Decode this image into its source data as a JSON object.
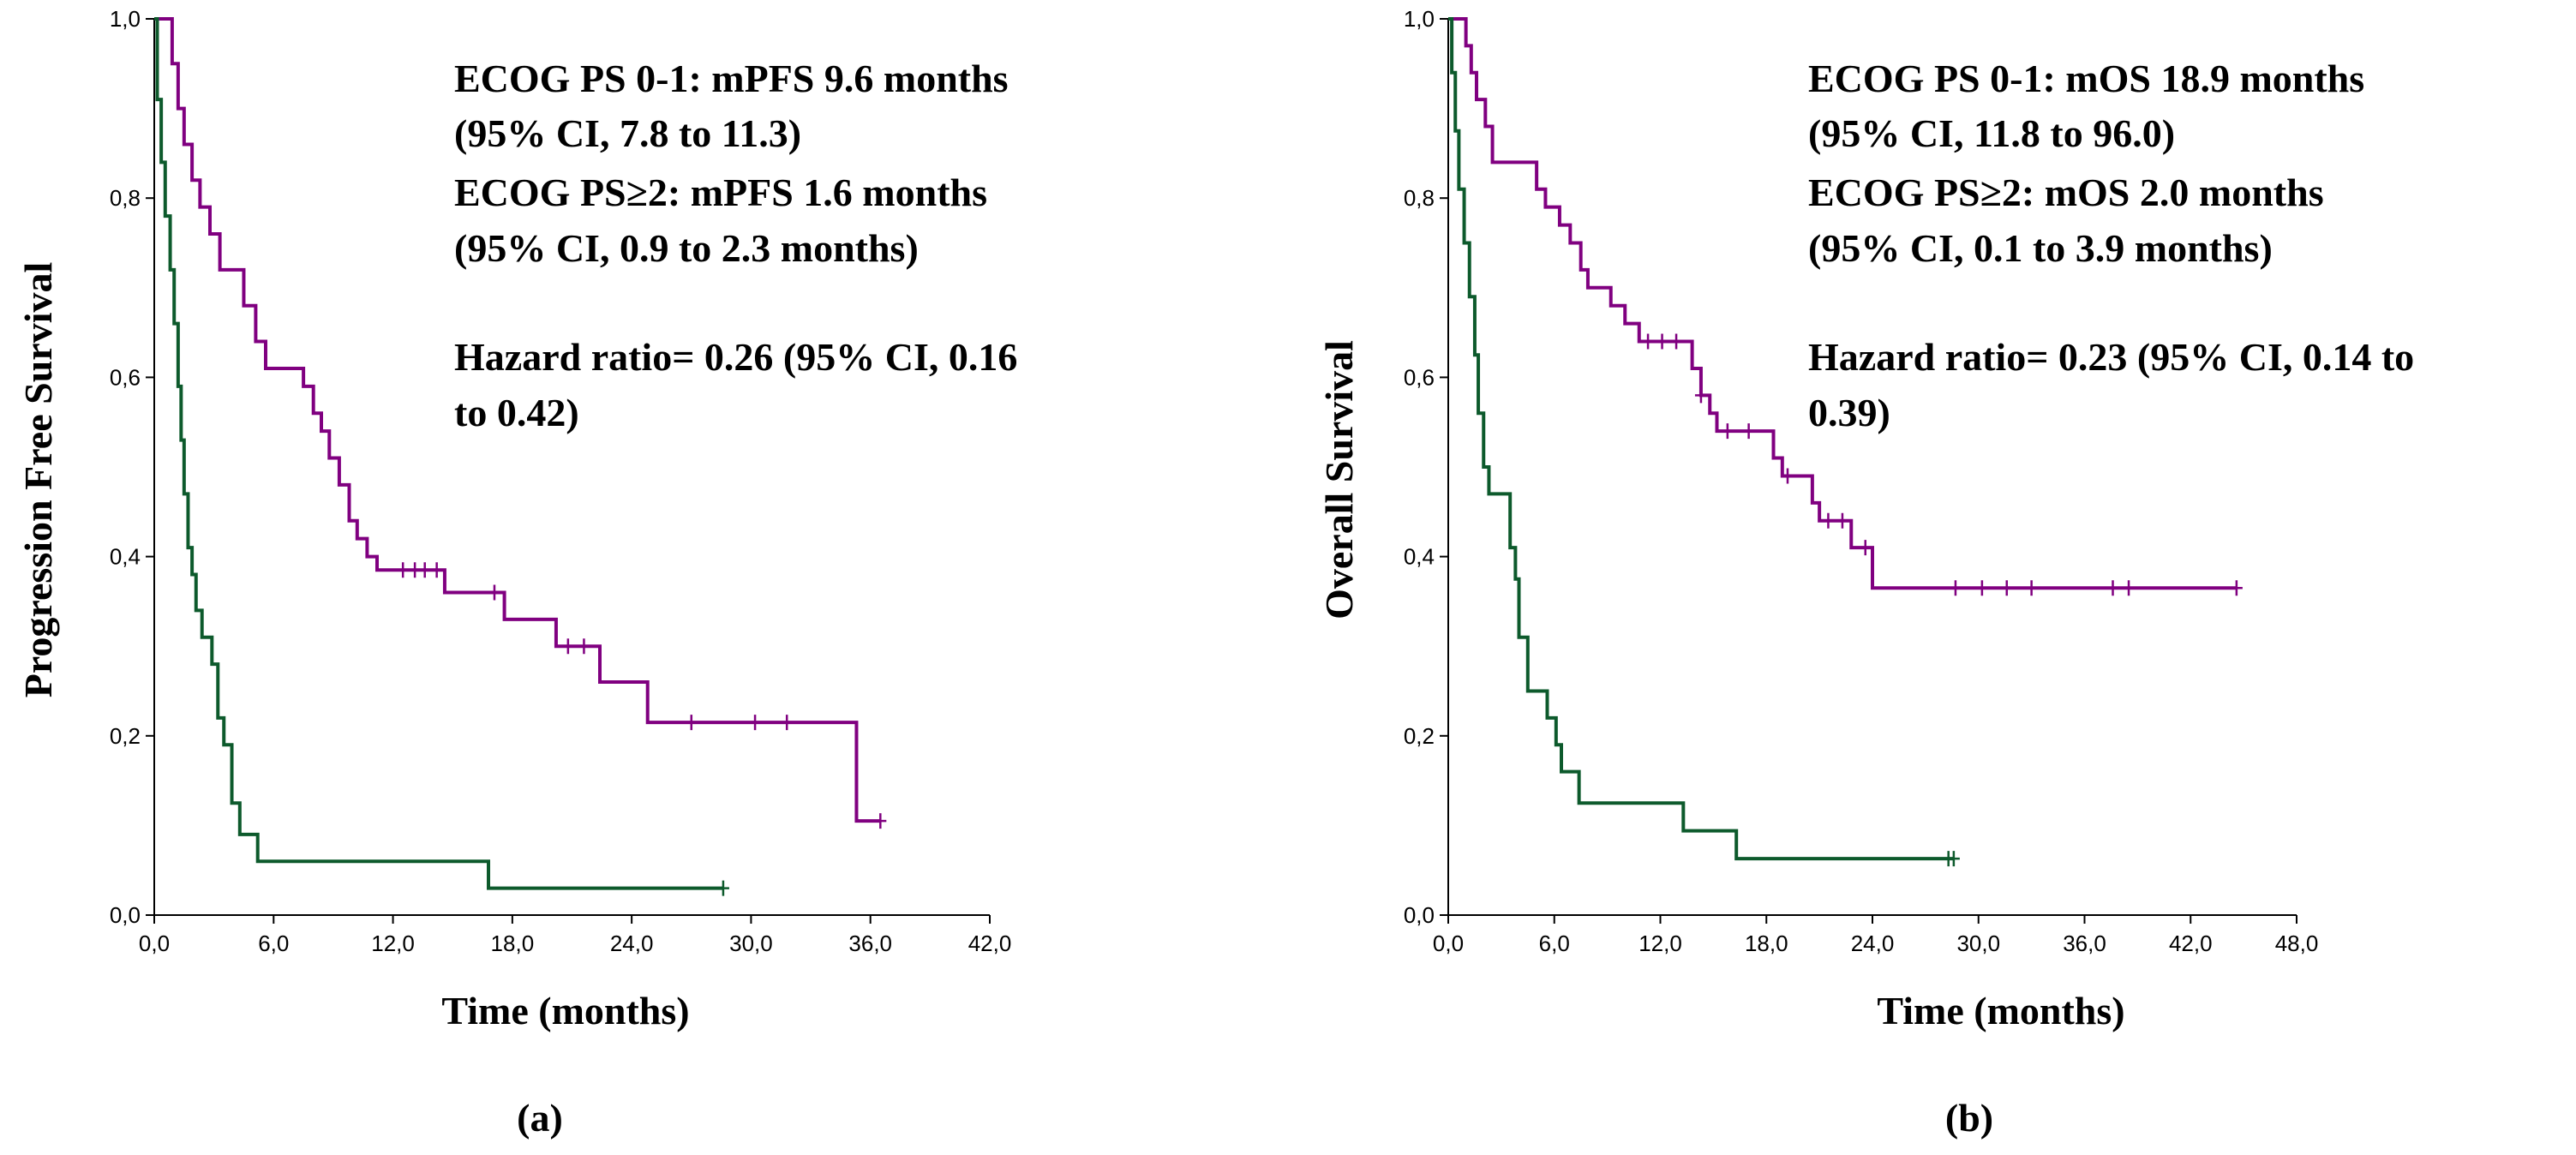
{
  "colors": {
    "ps01": "#800080",
    "ps2": "#0d5a2c",
    "axis": "#000000"
  },
  "chart_data": [
    {
      "type": "line",
      "subtype": "kaplan-meier",
      "panel_label": "(a)",
      "xlabel": "Time (months)",
      "ylabel": "Progression Free Survival",
      "x_ticks": [
        "0,0",
        "6,0",
        "12,0",
        "18,0",
        "24,0",
        "30,0",
        "36,0",
        "42,0"
      ],
      "x_tick_values": [
        0,
        6,
        12,
        18,
        24,
        30,
        36,
        42
      ],
      "y_ticks": [
        "0,0",
        "0,2",
        "0,4",
        "0,6",
        "0,8",
        "1,0"
      ],
      "y_tick_values": [
        0,
        0.2,
        0.4,
        0.6,
        0.8,
        1.0
      ],
      "xlim": [
        0,
        42
      ],
      "ylim": [
        0,
        1
      ],
      "annotations": [
        "ECOG PS 0-1: mPFS 9.6 months",
        "(95% CI, 7.8 to 11.3)",
        "ECOG PS≥2: mPFS 1.6 months",
        "(95% CI, 0.9 to 2.3 months)",
        "",
        "Hazard ratio= 0.26 (95% CI, 0.16",
        "to 0.42)"
      ],
      "series": [
        {
          "name": "ECOG PS 0-1",
          "color_key": "ps01",
          "steps": [
            [
              0,
              1.0
            ],
            [
              0.6,
              1.0
            ],
            [
              0.9,
              0.95
            ],
            [
              1.2,
              0.9
            ],
            [
              1.5,
              0.86
            ],
            [
              1.9,
              0.82
            ],
            [
              2.3,
              0.79
            ],
            [
              2.8,
              0.76
            ],
            [
              3.3,
              0.72
            ],
            [
              4.5,
              0.68
            ],
            [
              5.1,
              0.64
            ],
            [
              5.6,
              0.61
            ],
            [
              7.5,
              0.59
            ],
            [
              8.0,
              0.56
            ],
            [
              8.4,
              0.54
            ],
            [
              8.8,
              0.51
            ],
            [
              9.3,
              0.48
            ],
            [
              9.8,
              0.44
            ],
            [
              10.2,
              0.42
            ],
            [
              10.7,
              0.4
            ],
            [
              11.2,
              0.385
            ],
            [
              14.6,
              0.36
            ],
            [
              17.6,
              0.33
            ],
            [
              20.2,
              0.3
            ],
            [
              22.4,
              0.26
            ],
            [
              24.8,
              0.215
            ],
            [
              35.3,
              0.105
            ],
            [
              36.5,
              0.105
            ]
          ],
          "censored": [
            [
              12.5,
              0.385
            ],
            [
              13.1,
              0.385
            ],
            [
              13.6,
              0.385
            ],
            [
              14.2,
              0.385
            ],
            [
              17.1,
              0.36
            ],
            [
              20.8,
              0.3
            ],
            [
              21.6,
              0.3
            ],
            [
              27.0,
              0.215
            ],
            [
              30.2,
              0.215
            ],
            [
              31.8,
              0.215
            ],
            [
              36.5,
              0.105
            ]
          ]
        },
        {
          "name": "ECOG PS≥2",
          "color_key": "ps2",
          "steps": [
            [
              0,
              1.0
            ],
            [
              0.15,
              0.91
            ],
            [
              0.35,
              0.84
            ],
            [
              0.55,
              0.78
            ],
            [
              0.8,
              0.72
            ],
            [
              1.0,
              0.66
            ],
            [
              1.2,
              0.59
            ],
            [
              1.35,
              0.53
            ],
            [
              1.5,
              0.47
            ],
            [
              1.7,
              0.41
            ],
            [
              1.9,
              0.38
            ],
            [
              2.1,
              0.34
            ],
            [
              2.4,
              0.31
            ],
            [
              2.9,
              0.28
            ],
            [
              3.2,
              0.22
            ],
            [
              3.5,
              0.19
            ],
            [
              3.9,
              0.125
            ],
            [
              4.3,
              0.09
            ],
            [
              5.2,
              0.06
            ],
            [
              16.8,
              0.03
            ],
            [
              28.6,
              0.03
            ]
          ],
          "censored": [
            [
              28.6,
              0.03
            ]
          ]
        }
      ]
    },
    {
      "type": "line",
      "subtype": "kaplan-meier",
      "panel_label": "(b)",
      "xlabel": "Time (months)",
      "ylabel": "Overall Survival",
      "x_ticks": [
        "0,0",
        "6,0",
        "12,0",
        "18,0",
        "24,0",
        "30,0",
        "36,0",
        "42,0",
        "48,0"
      ],
      "x_tick_values": [
        0,
        6,
        12,
        18,
        24,
        30,
        36,
        42,
        48
      ],
      "y_ticks": [
        "0,0",
        "0,2",
        "0,4",
        "0,6",
        "0,8",
        "1,0"
      ],
      "y_tick_values": [
        0,
        0.2,
        0.4,
        0.6,
        0.8,
        1.0
      ],
      "xlim": [
        0,
        48
      ],
      "ylim": [
        0,
        1
      ],
      "annotations": [
        "ECOG PS 0-1: mOS 18.9 months",
        "(95% CI, 11.8 to 96.0)",
        "ECOG PS≥2: mOS 2.0 months",
        "(95% CI, 0.1 to 3.9 months)",
        "",
        "Hazard ratio= 0.23 (95% CI, 0.14 to",
        "0.39)"
      ],
      "series": [
        {
          "name": "ECOG PS 0-1",
          "color_key": "ps01",
          "steps": [
            [
              0,
              1.0
            ],
            [
              0.7,
              1.0
            ],
            [
              1.0,
              0.97
            ],
            [
              1.3,
              0.94
            ],
            [
              1.6,
              0.91
            ],
            [
              2.1,
              0.88
            ],
            [
              2.5,
              0.84
            ],
            [
              5.0,
              0.81
            ],
            [
              5.5,
              0.79
            ],
            [
              6.3,
              0.77
            ],
            [
              6.9,
              0.75
            ],
            [
              7.5,
              0.72
            ],
            [
              7.9,
              0.7
            ],
            [
              9.2,
              0.68
            ],
            [
              10.0,
              0.66
            ],
            [
              10.8,
              0.64
            ],
            [
              13.8,
              0.61
            ],
            [
              14.3,
              0.58
            ],
            [
              14.8,
              0.56
            ],
            [
              15.2,
              0.54
            ],
            [
              18.4,
              0.51
            ],
            [
              18.9,
              0.49
            ],
            [
              20.6,
              0.46
            ],
            [
              21.0,
              0.44
            ],
            [
              22.8,
              0.41
            ],
            [
              24.0,
              0.365
            ],
            [
              44.6,
              0.365
            ]
          ],
          "censored": [
            [
              11.3,
              0.64
            ],
            [
              12.1,
              0.64
            ],
            [
              12.9,
              0.64
            ],
            [
              14.3,
              0.58
            ],
            [
              15.8,
              0.54
            ],
            [
              17.0,
              0.54
            ],
            [
              19.2,
              0.49
            ],
            [
              21.5,
              0.44
            ],
            [
              22.3,
              0.44
            ],
            [
              23.6,
              0.41
            ],
            [
              28.7,
              0.365
            ],
            [
              30.2,
              0.365
            ],
            [
              31.6,
              0.365
            ],
            [
              33.0,
              0.365
            ],
            [
              37.6,
              0.365
            ],
            [
              38.5,
              0.365
            ],
            [
              44.6,
              0.365
            ]
          ]
        },
        {
          "name": "ECOG PS≥2",
          "color_key": "ps2",
          "steps": [
            [
              0,
              1.0
            ],
            [
              0.2,
              0.94
            ],
            [
              0.4,
              0.875
            ],
            [
              0.6,
              0.81
            ],
            [
              0.9,
              0.75
            ],
            [
              1.2,
              0.69
            ],
            [
              1.5,
              0.625
            ],
            [
              1.7,
              0.56
            ],
            [
              2.0,
              0.5
            ],
            [
              2.3,
              0.47
            ],
            [
              3.5,
              0.41
            ],
            [
              3.8,
              0.375
            ],
            [
              4.0,
              0.31
            ],
            [
              4.5,
              0.25
            ],
            [
              5.6,
              0.22
            ],
            [
              6.1,
              0.19
            ],
            [
              6.4,
              0.16
            ],
            [
              7.4,
              0.125
            ],
            [
              13.3,
              0.094
            ],
            [
              16.3,
              0.063
            ],
            [
              28.6,
              0.063
            ]
          ],
          "censored": [
            [
              28.3,
              0.063
            ],
            [
              28.6,
              0.063
            ]
          ]
        }
      ]
    }
  ]
}
